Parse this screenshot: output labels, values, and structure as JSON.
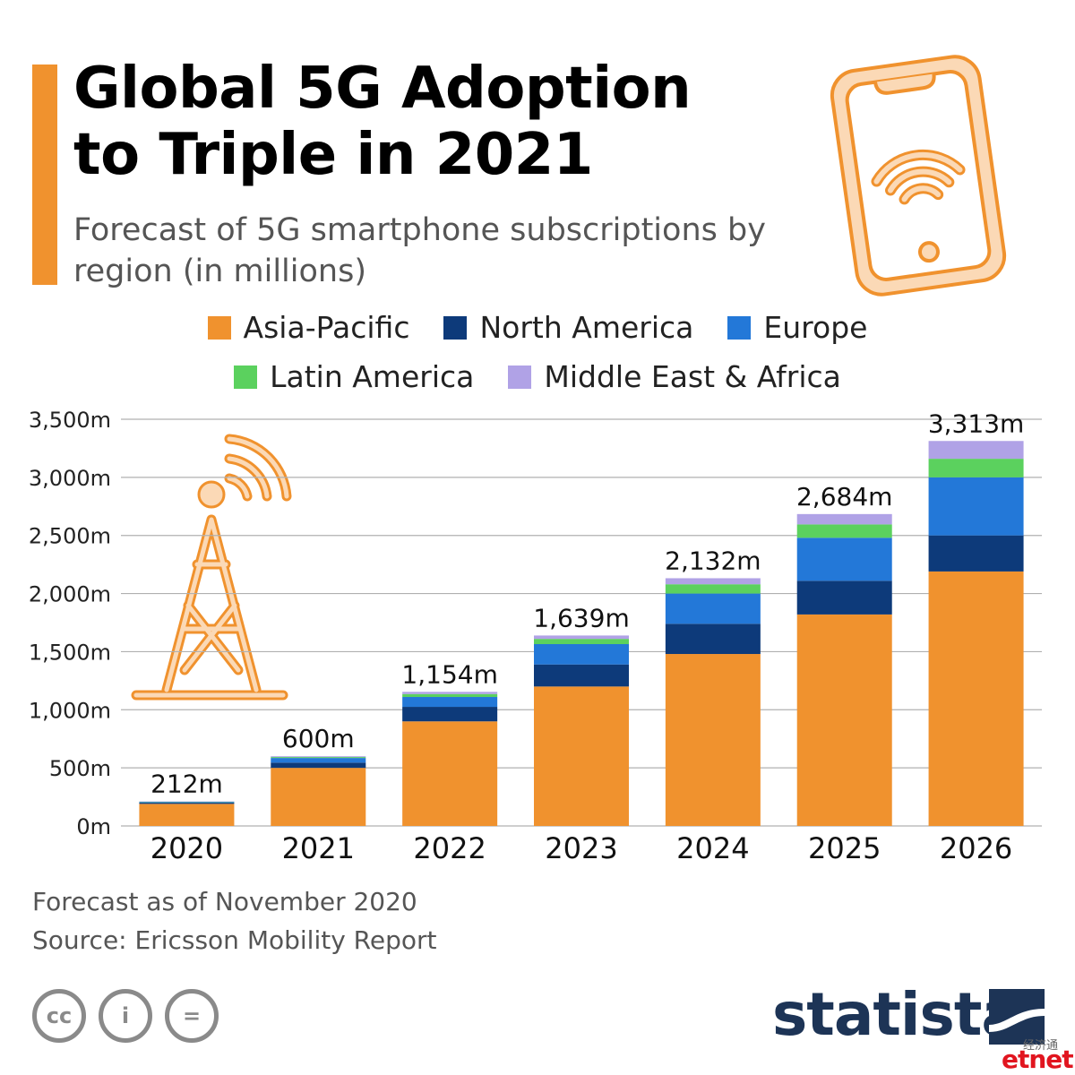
{
  "header": {
    "title": "Global 5G Adoption to Triple in 2021",
    "subtitle": "Forecast of 5G smartphone subscriptions by region (in millions)"
  },
  "legend": [
    {
      "label": "Asia-Pacific",
      "color": "#f0922e"
    },
    {
      "label": "North America",
      "color": "#0d3a7a"
    },
    {
      "label": "Europe",
      "color": "#2378d8"
    },
    {
      "label": "Latin America",
      "color": "#5bd15e"
    },
    {
      "label": "Middle East & Africa",
      "color": "#b0a2e6"
    }
  ],
  "chart_data": {
    "type": "bar",
    "stacked": true,
    "categories": [
      "2020",
      "2021",
      "2022",
      "2023",
      "2024",
      "2025",
      "2026"
    ],
    "series": [
      {
        "name": "Asia-Pacific",
        "color": "#f0922e",
        "values": [
          190,
          500,
          900,
          1200,
          1480,
          1820,
          2190
        ]
      },
      {
        "name": "North America",
        "color": "#0d3a7a",
        "values": [
          10,
          45,
          125,
          190,
          260,
          290,
          310
        ]
      },
      {
        "name": "Europe",
        "color": "#2378d8",
        "values": [
          6,
          40,
          85,
          175,
          260,
          370,
          500
        ]
      },
      {
        "name": "Latin America",
        "color": "#5bd15e",
        "values": [
          3,
          8,
          25,
          45,
          80,
          115,
          160
        ]
      },
      {
        "name": "Middle East & Africa",
        "color": "#b0a2e6",
        "values": [
          3,
          7,
          19,
          29,
          52,
          89,
          153
        ]
      }
    ],
    "totals": [
      "212m",
      "600m",
      "1,154m",
      "1,639m",
      "2,132m",
      "2,684m",
      "3,313m"
    ],
    "total_values": [
      212,
      600,
      1154,
      1639,
      2132,
      2684,
      3313
    ],
    "ylim": [
      0,
      3500
    ],
    "yticks": [
      0,
      500,
      1000,
      1500,
      2000,
      2500,
      3000,
      3500
    ],
    "ytick_labels": [
      "0m",
      "500m",
      "1,000m",
      "1,500m",
      "2,000m",
      "2,500m",
      "3,000m",
      "3,500m"
    ],
    "grid": true,
    "legend_position": "top"
  },
  "footer": {
    "note": "Forecast as of November 2020",
    "source": "Source: Ericsson Mobility Report",
    "cc_icons": [
      {
        "name": "cc-icon",
        "glyph": "cc"
      },
      {
        "name": "attribution-icon",
        "glyph": "i"
      },
      {
        "name": "no-derivatives-icon",
        "glyph": "="
      }
    ],
    "brand": "statista",
    "partner_cn": "经济通",
    "partner": "etnet"
  }
}
